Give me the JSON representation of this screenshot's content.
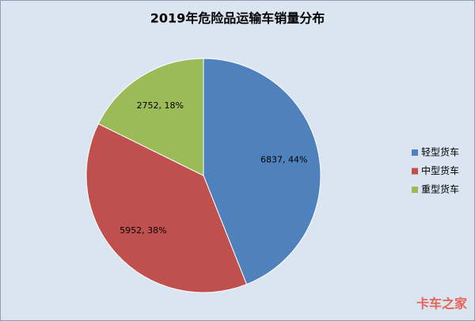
{
  "chart_data": {
    "type": "pie",
    "title": "2019年危险品运输车销量分布",
    "categories": [
      "轻型货车",
      "中型货车",
      "重型货车"
    ],
    "values": [
      6837,
      5952,
      2752
    ],
    "value_labels": [
      "6837, 44%",
      "5952, 38%",
      "2752, 18%"
    ],
    "colors": [
      "#4f81bd",
      "#c0504d",
      "#9bbb59"
    ],
    "legend": "right",
    "watermark": "卡车之家"
  }
}
